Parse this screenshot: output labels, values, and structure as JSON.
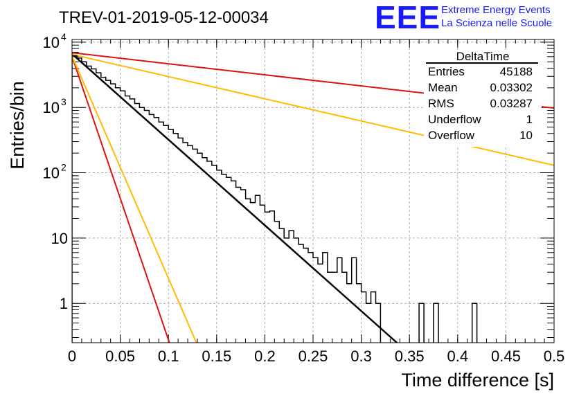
{
  "title": "TREV-01-2019-05-12-00034",
  "logo": {
    "mark": "EEE",
    "line1": "Extreme Energy Events",
    "line2": "La Scienza nelle Scuole",
    "color": "#1a1aff"
  },
  "stats": {
    "title": "DeltaTime",
    "rows": [
      {
        "label": "Entries",
        "value": "45188"
      },
      {
        "label": "Mean",
        "value": "0.03302"
      },
      {
        "label": "RMS",
        "value": "0.03287"
      },
      {
        "label": "Underflow",
        "value": "1"
      },
      {
        "label": "Overflow",
        "value": "10"
      }
    ]
  },
  "chart_data": {
    "type": "line",
    "title": "TREV-01-2019-05-12-00034",
    "xlabel": "Time difference [s]",
    "ylabel": "Entries/bin",
    "xlim": [
      0,
      0.5
    ],
    "ylim": [
      0.25,
      11000
    ],
    "yscale": "log",
    "grid": true,
    "x_ticks": [
      "0",
      "0.05",
      "0.1",
      "0.15",
      "0.2",
      "0.25",
      "0.3",
      "0.35",
      "0.4",
      "0.45",
      "0.5"
    ],
    "y_ticks": [
      {
        "value": 1,
        "label": "1"
      },
      {
        "value": 10,
        "label": "10"
      },
      {
        "value": 100,
        "label": "10",
        "exp": "2"
      },
      {
        "value": 1000,
        "label": "10",
        "exp": "3"
      },
      {
        "value": 10000,
        "label": "10",
        "exp": "4"
      }
    ],
    "histogram": {
      "bin_width": 0.005,
      "x_start": 0,
      "color": "#000000",
      "counts": [
        6200,
        5700,
        5000,
        4300,
        3900,
        3400,
        2900,
        2600,
        2300,
        2000,
        1800,
        1500,
        1350,
        1150,
        1000,
        900,
        780,
        700,
        600,
        530,
        460,
        400,
        340,
        290,
        260,
        230,
        200,
        170,
        150,
        130,
        110,
        95,
        85,
        75,
        60,
        55,
        40,
        35,
        45,
        32,
        25,
        26,
        18,
        14,
        10,
        13,
        10,
        8,
        7,
        6,
        5,
        4,
        6,
        3,
        3,
        5,
        3,
        2,
        5,
        2,
        1.5,
        1,
        1.5,
        1,
        0,
        0,
        0,
        0,
        0,
        0,
        0,
        0,
        1,
        0,
        0,
        1,
        0,
        0,
        0,
        0,
        0,
        0,
        0,
        1,
        0,
        0,
        0,
        0,
        0,
        0,
        0,
        0,
        0,
        0,
        0,
        0,
        0,
        0,
        0,
        0
      ]
    },
    "series": [
      {
        "color": "#000000",
        "points": [
          [
            0,
            6600
          ],
          [
            0.337,
            0.25
          ]
        ]
      },
      {
        "color": "#dd1111",
        "points": [
          [
            0,
            6900
          ],
          [
            0.5,
            980
          ]
        ]
      },
      {
        "color": "#ffbb00",
        "points": [
          [
            0,
            6500
          ],
          [
            0.5,
            130
          ]
        ]
      },
      {
        "color": "#dd1111",
        "points": [
          [
            0,
            6000
          ],
          [
            0.101,
            0.25
          ]
        ]
      },
      {
        "color": "#ffbb00",
        "points": [
          [
            0,
            6100
          ],
          [
            0.129,
            0.25
          ]
        ]
      }
    ]
  }
}
